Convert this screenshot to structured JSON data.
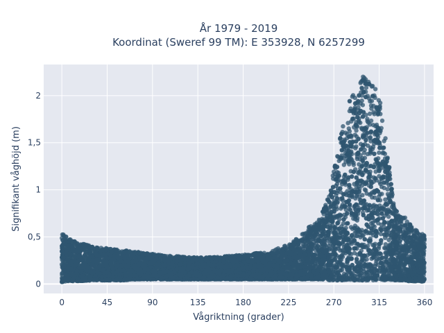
{
  "chart_data": {
    "type": "scatter",
    "title": "År 1979 - 2019",
    "subtitle": "Koordinat (Sweref 99 TM): E 353928, N 6257299",
    "xlabel": "Vågriktning (grader)",
    "ylabel": "Signifikant våghöjd (m)",
    "xlim": [
      -18,
      369
    ],
    "ylim": [
      -0.1,
      2.33
    ],
    "x_ticks": [
      0,
      45,
      90,
      135,
      180,
      225,
      270,
      315,
      360
    ],
    "x_tick_labels": [
      "0",
      "45",
      "90",
      "135",
      "180",
      "225",
      "270",
      "315",
      "360"
    ],
    "y_ticks": [
      0,
      0.5,
      1,
      1.5,
      2
    ],
    "y_tick_labels": [
      "0",
      "0,5",
      "1",
      "1,5",
      "2"
    ],
    "grid": true,
    "legend": "none",
    "marker_color": "#2f5570",
    "plot_background": "#e5e8f0",
    "envelope": {
      "x": [
        0,
        5,
        15,
        30,
        45,
        60,
        75,
        90,
        105,
        120,
        135,
        150,
        165,
        180,
        195,
        210,
        225,
        240,
        250,
        260,
        265,
        270,
        275,
        280,
        285,
        290,
        295,
        300,
        305,
        310,
        315,
        320,
        325,
        330,
        335,
        340,
        345,
        350,
        355,
        360
      ],
      "y_max": [
        0.55,
        0.5,
        0.45,
        0.4,
        0.38,
        0.36,
        0.34,
        0.32,
        0.3,
        0.29,
        0.28,
        0.29,
        0.3,
        0.31,
        0.33,
        0.36,
        0.42,
        0.55,
        0.65,
        0.8,
        0.95,
        1.2,
        1.5,
        1.75,
        1.95,
        2.05,
        2.12,
        2.25,
        2.15,
        2.1,
        2.05,
        1.7,
        1.25,
        0.8,
        0.75,
        0.72,
        0.65,
        0.58,
        0.55,
        0.52
      ],
      "y_min": [
        0.02,
        0.03,
        0.03,
        0.04,
        0.04,
        0.04,
        0.05,
        0.05,
        0.05,
        0.05,
        0.05,
        0.05,
        0.05,
        0.05,
        0.05,
        0.05,
        0.05,
        0.05,
        0.05,
        0.05,
        0.04,
        0.04,
        0.04,
        0.04,
        0.04,
        0.04,
        0.04,
        0.04,
        0.04,
        0.04,
        0.04,
        0.04,
        0.04,
        0.04,
        0.04,
        0.04,
        0.03,
        0.03,
        0.03,
        0.02
      ]
    }
  }
}
